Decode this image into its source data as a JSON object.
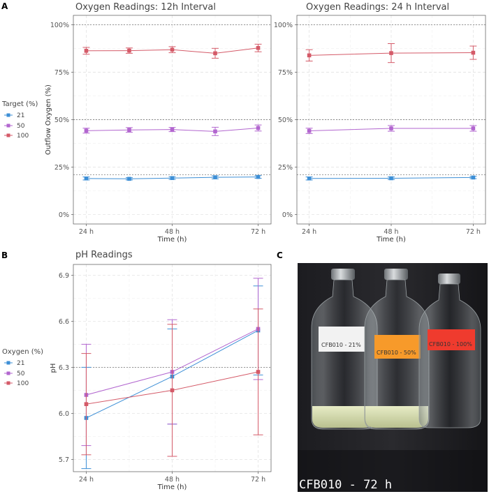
{
  "panels": {
    "a": "A",
    "b": "B",
    "c": "C"
  },
  "colors": {
    "s21": "#3d8fd6",
    "s50": "#b266cf",
    "s100": "#d45a68"
  },
  "chart_data": [
    {
      "id": "o12",
      "type": "line",
      "title": "Oxygen Readings: 12h Interval",
      "xlabel": "Time (h)",
      "ylabel": "Outflow Oxygen (%)",
      "xlim": [
        20.4,
        75.6
      ],
      "ylim": [
        -5,
        105
      ],
      "x_ticks": [
        24,
        48,
        72
      ],
      "x_tick_labels": [
        "24 h",
        "48 h",
        "72 h"
      ],
      "y_ticks": [
        0,
        25,
        50,
        75,
        100
      ],
      "y_tick_labels": [
        "0%",
        "25%",
        "50%",
        "75%",
        "100%"
      ],
      "reference_lines": [
        21,
        50,
        100
      ],
      "series": [
        {
          "name": "21",
          "x": [
            24,
            36,
            48,
            60,
            72
          ],
          "y": [
            19,
            18.8,
            19.2,
            19.6,
            19.8
          ],
          "err": [
            0.8,
            0.6,
            0.7,
            0.8,
            0.7
          ]
        },
        {
          "name": "50",
          "x": [
            24,
            36,
            48,
            60,
            72
          ],
          "y": [
            44.2,
            44.6,
            44.8,
            43.8,
            45.6
          ],
          "err": [
            1.3,
            1.2,
            1.1,
            2.2,
            1.6
          ]
        },
        {
          "name": "100",
          "x": [
            24,
            36,
            48,
            60,
            72
          ],
          "y": [
            86.3,
            86.4,
            86.9,
            85,
            87.8
          ],
          "err": [
            1.8,
            1.4,
            1.6,
            2.6,
            2
          ]
        }
      ]
    },
    {
      "id": "o24",
      "type": "line",
      "title": "Oxygen Readings: 24 h Interval",
      "xlabel": "Time (h)",
      "ylabel": "",
      "xlim": [
        20.4,
        75.6
      ],
      "ylim": [
        -5,
        105
      ],
      "x_ticks": [
        24,
        48,
        72
      ],
      "x_tick_labels": [
        "24 h",
        "48 h",
        "72 h"
      ],
      "y_ticks": [
        0,
        25,
        50,
        75,
        100
      ],
      "y_tick_labels": [
        "0%",
        "25%",
        "50%",
        "75%",
        "100%"
      ],
      "reference_lines": [
        21,
        50,
        100
      ],
      "series": [
        {
          "name": "21",
          "x": [
            24,
            48,
            72
          ],
          "y": [
            19,
            19.1,
            19.5
          ],
          "err": [
            0.8,
            0.7,
            0.6
          ]
        },
        {
          "name": "50",
          "x": [
            24,
            48,
            72
          ],
          "y": [
            44.1,
            45.4,
            45.4
          ],
          "err": [
            1.4,
            1.5,
            1.5
          ]
        },
        {
          "name": "100",
          "x": [
            24,
            48,
            72
          ],
          "y": [
            83.9,
            85.1,
            85.3
          ],
          "err": [
            3.0,
            5.0,
            3.5
          ]
        }
      ]
    },
    {
      "id": "ph",
      "type": "line",
      "title": "pH Readings",
      "xlabel": "Time (h)",
      "ylabel": "pH",
      "xlim": [
        20.4,
        75.6
      ],
      "ylim": [
        5.62,
        6.97
      ],
      "x_ticks": [
        24,
        48,
        72
      ],
      "x_tick_labels": [
        "24 h",
        "48 h",
        "72 h"
      ],
      "y_ticks": [
        5.7,
        6.0,
        6.3,
        6.6,
        6.9
      ],
      "y_tick_labels": [
        "5.7",
        "6.0",
        "6.3",
        "6.6",
        "6.9"
      ],
      "reference_lines": [
        6.3
      ],
      "series": [
        {
          "name": "21",
          "x": [
            24,
            48,
            72
          ],
          "y": [
            5.97,
            6.24,
            6.54
          ],
          "err": [
            0.33,
            0.31,
            0.29
          ]
        },
        {
          "name": "50",
          "x": [
            24,
            48,
            72
          ],
          "y": [
            6.12,
            6.27,
            6.55
          ],
          "err": [
            0.33,
            0.34,
            0.33
          ]
        },
        {
          "name": "100",
          "x": [
            24,
            48,
            72
          ],
          "y": [
            6.06,
            6.15,
            6.27
          ],
          "err": [
            0.33,
            0.43,
            0.41
          ]
        }
      ]
    }
  ],
  "legends": {
    "target": {
      "title": "Target (%)",
      "items": [
        "21",
        "50",
        "100"
      ]
    },
    "oxygen": {
      "title": "Oxygen (%)",
      "items": [
        "21",
        "50",
        "100"
      ]
    }
  },
  "photo": {
    "caption": "CFB010 - 72 h",
    "bottle_labels": [
      "CFB010 - 21%",
      "CFB010 - 50%",
      "CFB010 - 100%"
    ],
    "label_colors": [
      "#f2f2f2",
      "#f79a2a",
      "#ef3b2e"
    ]
  }
}
